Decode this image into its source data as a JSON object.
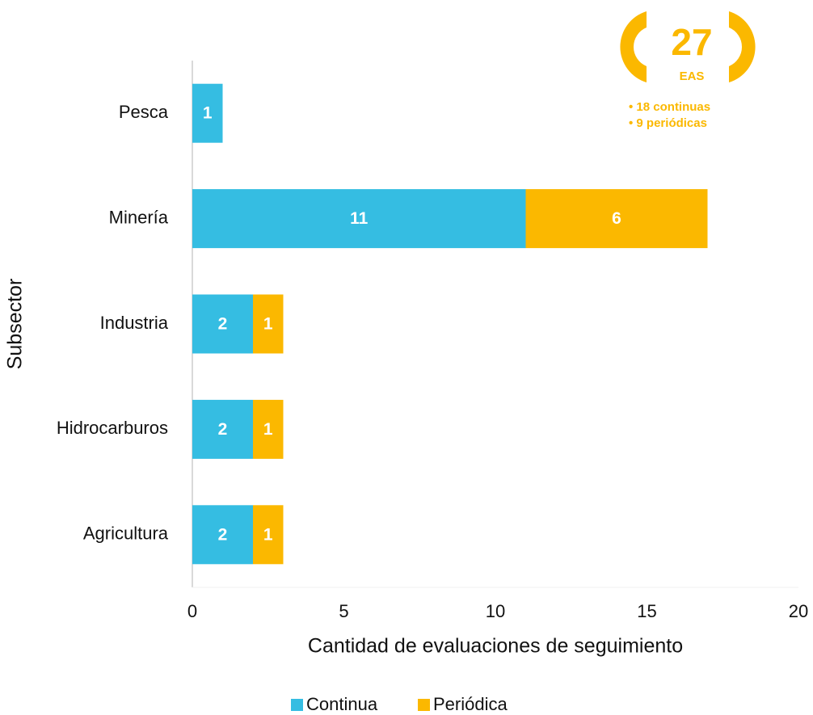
{
  "chart_data": {
    "type": "stacked-barh",
    "xlabel": "Cantidad de evaluaciones de seguimiento",
    "ylabel": "Subsector",
    "categories": [
      "Pesca",
      "Minería",
      "Industria",
      "Hidrocarburos",
      "Agricultura"
    ],
    "series": [
      {
        "name": "Continua",
        "color": "#35bde2",
        "values": [
          1,
          11,
          2,
          2,
          2
        ]
      },
      {
        "name": "Periódica",
        "color": "#fbb800",
        "values": [
          null,
          6,
          1,
          1,
          1
        ]
      }
    ],
    "xlim": [
      0,
      20
    ],
    "xticks": [
      0,
      5,
      10,
      15,
      20
    ],
    "legend": "bottom",
    "annotation": {
      "total": "27",
      "unit": "EAS",
      "items": [
        "• 18 continuas",
        "• 9 periódicas"
      ],
      "color": "#fbb800"
    }
  }
}
